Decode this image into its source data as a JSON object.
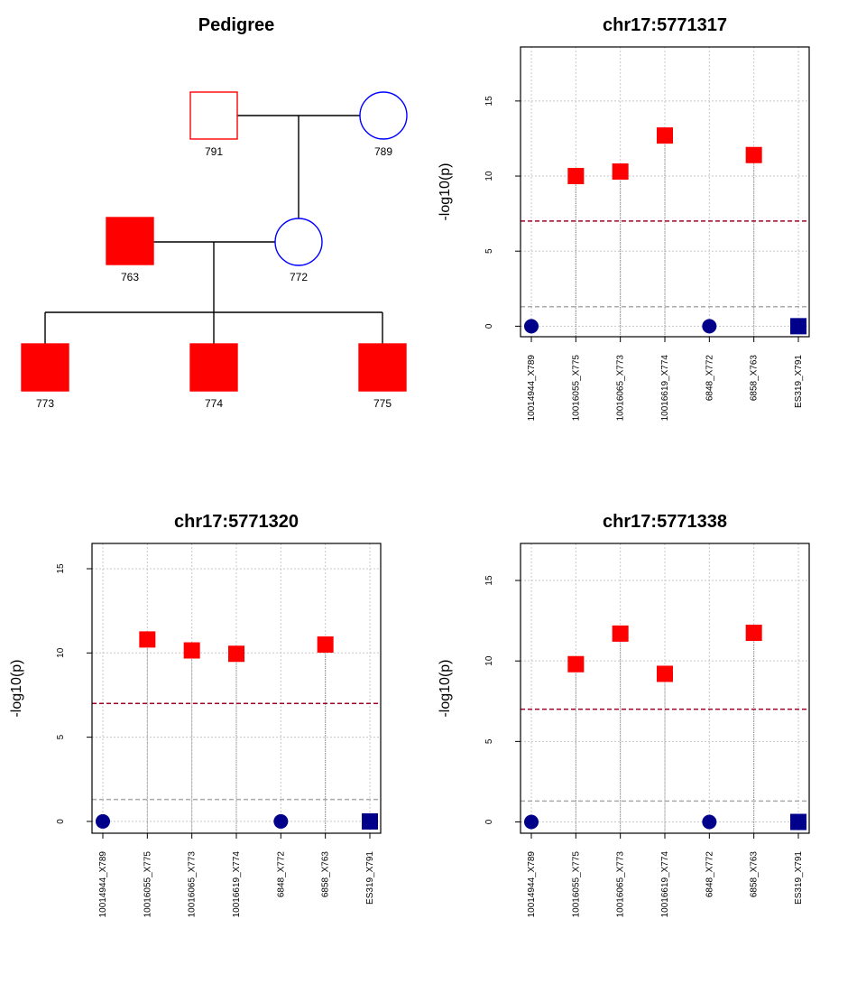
{
  "pedigree": {
    "title": "Pedigree",
    "individuals": [
      {
        "id": "791",
        "sex": "male",
        "affected": false,
        "color": "#ff0000"
      },
      {
        "id": "789",
        "sex": "female",
        "affected": false,
        "color": "#0000ff"
      },
      {
        "id": "763",
        "sex": "male",
        "affected": true,
        "color": "#ff0000"
      },
      {
        "id": "772",
        "sex": "female",
        "affected": false,
        "color": "#0000ff"
      },
      {
        "id": "773",
        "sex": "male",
        "affected": true,
        "color": "#ff0000"
      },
      {
        "id": "774",
        "sex": "male",
        "affected": true,
        "color": "#ff0000"
      },
      {
        "id": "775",
        "sex": "male",
        "affected": true,
        "color": "#ff0000"
      }
    ],
    "matings": [
      [
        "791",
        "789"
      ],
      [
        "763",
        "772"
      ]
    ],
    "children": {
      "791+789": [
        "772"
      ],
      "763+772": [
        "773",
        "774",
        "775"
      ]
    }
  },
  "chart_data": [
    {
      "type": "scatter",
      "title": "chr17:5771317",
      "ylabel": "-log10(p)",
      "xlabel": "",
      "categories": [
        "10014944_X789",
        "10016055_X775",
        "10016065_X773",
        "10016619_X774",
        "6848_X772",
        "6858_X763",
        "ES319_X791"
      ],
      "values": [
        0,
        10,
        10.3,
        12.7,
        0,
        11.4,
        0
      ],
      "markers": [
        "circle",
        "square",
        "square",
        "square",
        "circle",
        "square",
        "square"
      ],
      "colors": [
        "#00008b",
        "#ff0000",
        "#ff0000",
        "#ff0000",
        "#00008b",
        "#ff0000",
        "#00008b"
      ],
      "yticks": [
        0,
        5,
        10,
        15
      ],
      "ylim": [
        -0.7,
        18.6
      ],
      "hlines": [
        {
          "y": 7,
          "color": "#a50026"
        },
        {
          "y": 1.3,
          "color": "#aaaaaa"
        }
      ],
      "grid": true
    },
    {
      "type": "scatter",
      "title": "chr17:5771320",
      "ylabel": "-log10(p)",
      "xlabel": "",
      "categories": [
        "10014944_X789",
        "10016055_X775",
        "10016065_X773",
        "10016619_X774",
        "6848_X772",
        "6858_X763",
        "ES319_X791"
      ],
      "values": [
        0,
        10.8,
        10.15,
        9.95,
        0,
        10.5,
        0
      ],
      "markers": [
        "circle",
        "square",
        "square",
        "square",
        "circle",
        "square",
        "square"
      ],
      "colors": [
        "#00008b",
        "#ff0000",
        "#ff0000",
        "#ff0000",
        "#00008b",
        "#ff0000",
        "#00008b"
      ],
      "yticks": [
        0,
        5,
        10,
        15
      ],
      "ylim": [
        -0.7,
        16.5
      ],
      "hlines": [
        {
          "y": 7,
          "color": "#a50026"
        },
        {
          "y": 1.3,
          "color": "#aaaaaa"
        }
      ],
      "grid": true
    },
    {
      "type": "scatter",
      "title": "chr17:5771338",
      "ylabel": "-log10(p)",
      "xlabel": "",
      "categories": [
        "10014944_X789",
        "10016055_X775",
        "10016065_X773",
        "10016619_X774",
        "6848_X772",
        "6858_X763",
        "ES319_X791"
      ],
      "values": [
        0,
        9.8,
        11.7,
        9.2,
        0,
        11.75,
        0
      ],
      "markers": [
        "circle",
        "square",
        "square",
        "square",
        "circle",
        "square",
        "square"
      ],
      "colors": [
        "#00008b",
        "#ff0000",
        "#ff0000",
        "#ff0000",
        "#00008b",
        "#ff0000",
        "#00008b"
      ],
      "yticks": [
        0,
        5,
        10,
        15
      ],
      "ylim": [
        -0.7,
        17.3
      ],
      "hlines": [
        {
          "y": 7,
          "color": "#a50026"
        },
        {
          "y": 1.3,
          "color": "#aaaaaa"
        }
      ],
      "grid": true
    }
  ]
}
